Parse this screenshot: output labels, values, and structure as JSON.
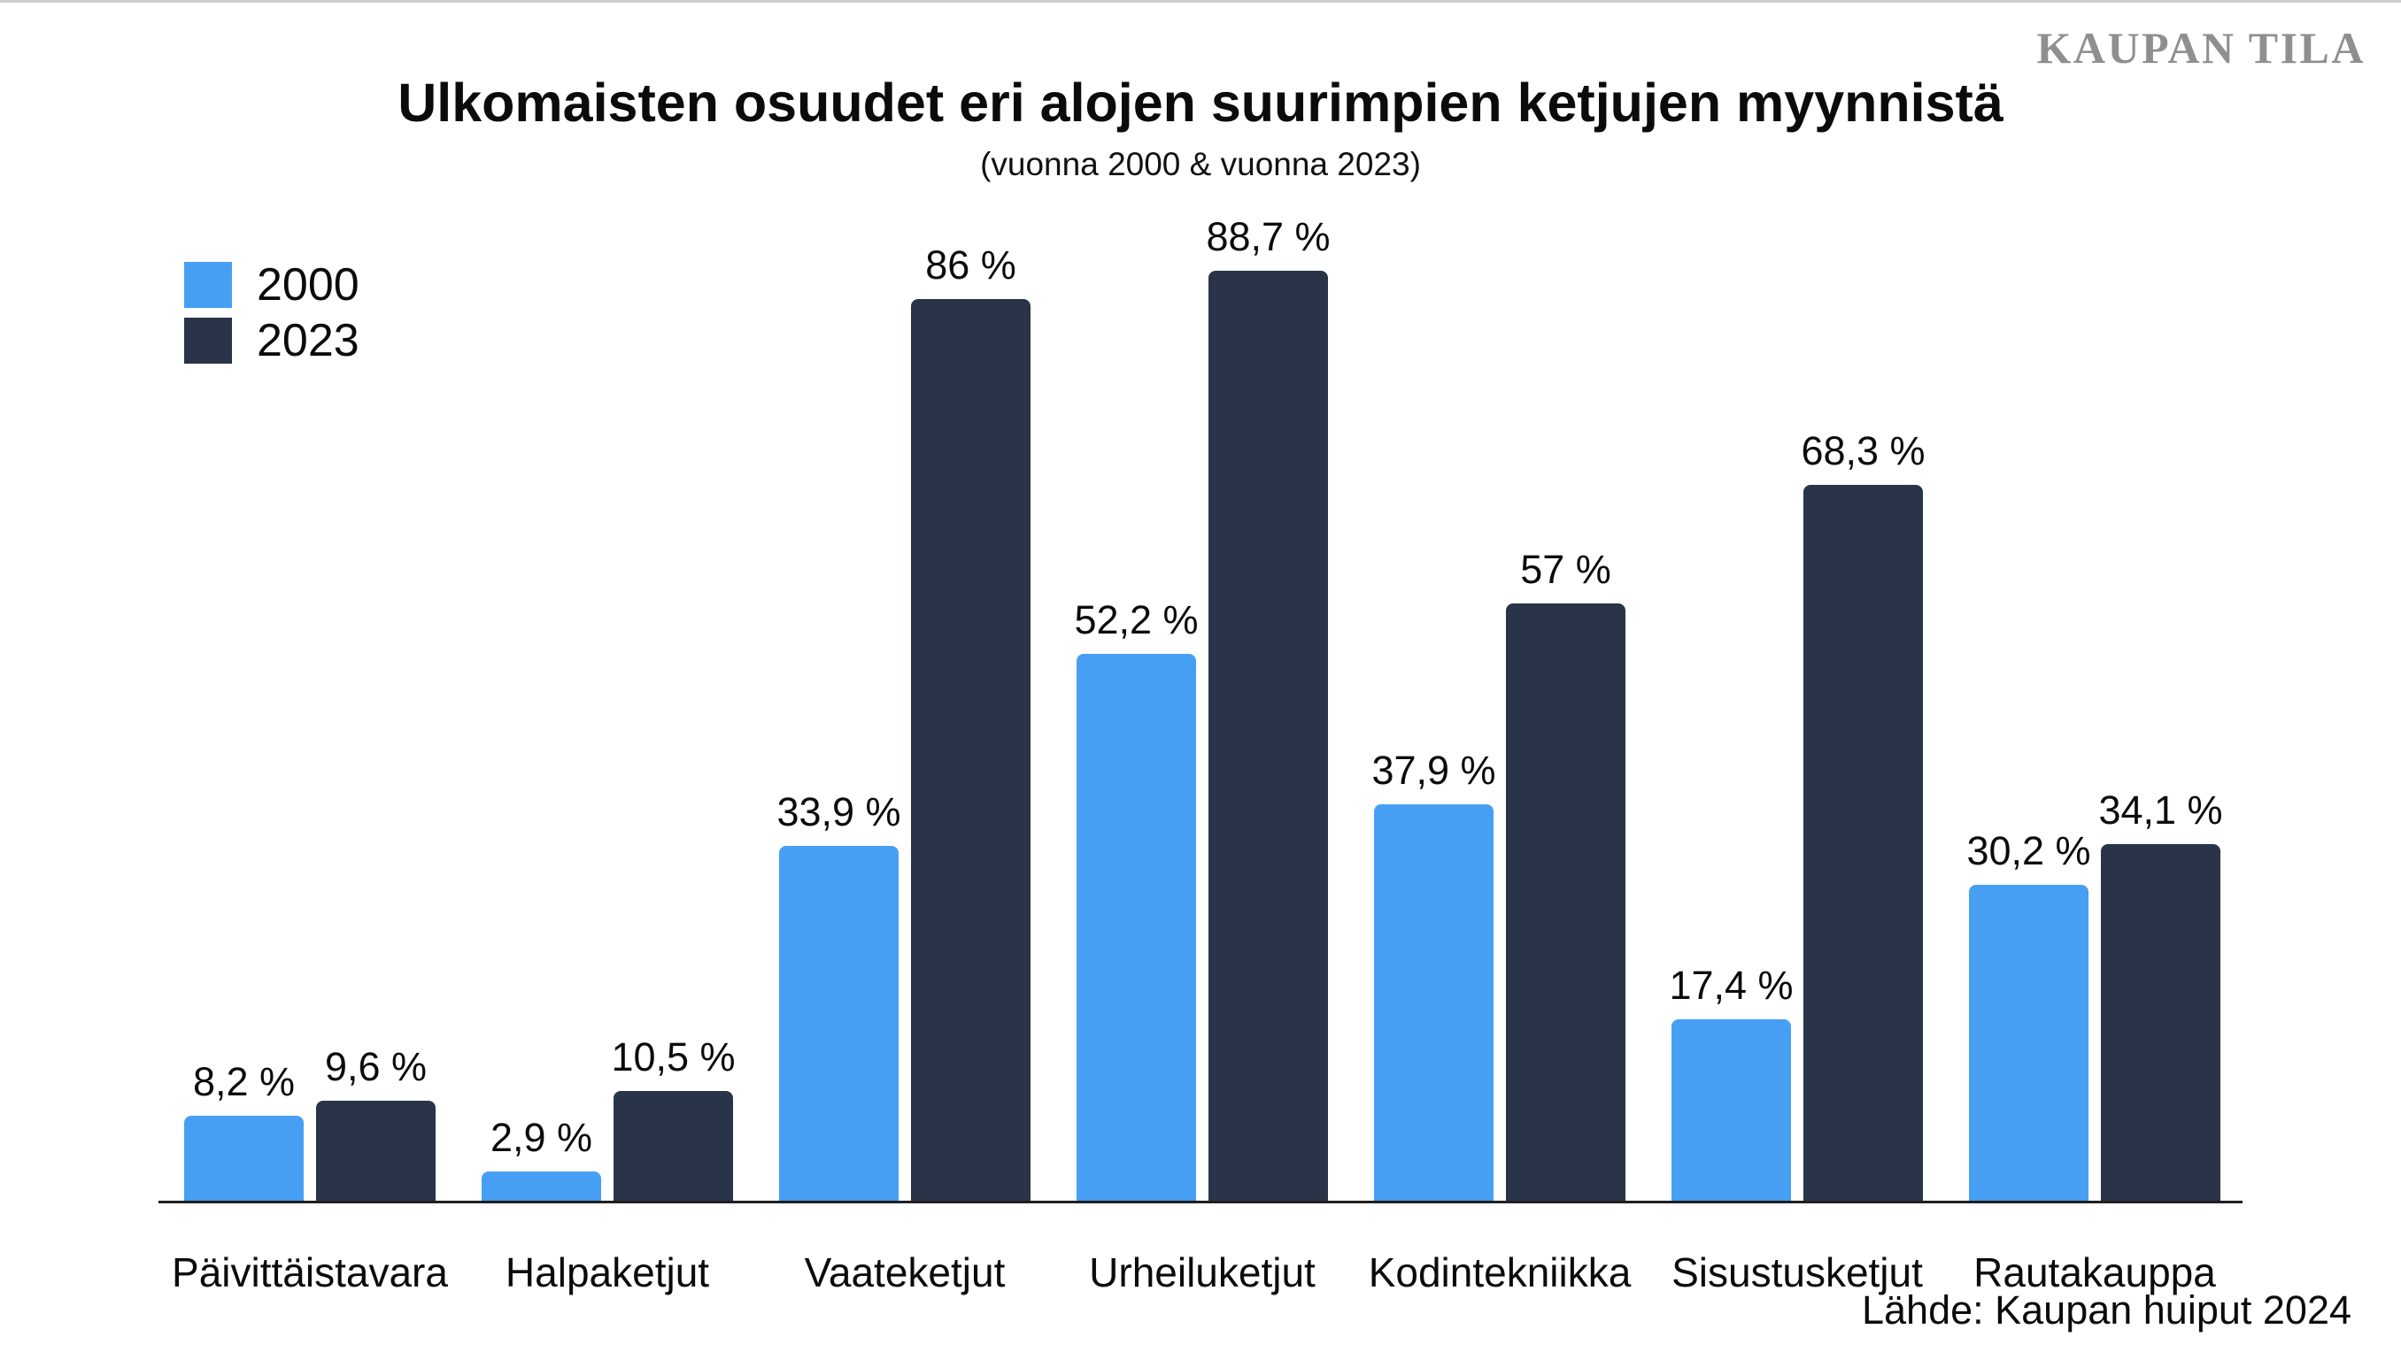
{
  "page": {
    "logo": "KAUPAN TILA",
    "title": "Ulkomaisten osuudet eri alojen suurimpien ketjujen myynnistä",
    "subtitle": "(vuonna 2000 & vuonna 2023)",
    "source": "Lähde: Kaupan huiput 2024"
  },
  "legend": {
    "items": [
      {
        "label": "2000",
        "color": "#469FF3"
      },
      {
        "label": "2023",
        "color": "#2A3448"
      }
    ]
  },
  "chart_data": {
    "type": "bar",
    "title": "Ulkomaisten osuudet eri alojen suurimpien ketjujen myynnistä",
    "subtitle": "(vuonna 2000 & vuonna 2023)",
    "categories": [
      "Päivittäistavara",
      "Halpaketjut",
      "Vaateketjut",
      "Urheiluketjut",
      "Kodintekniikka",
      "Sisustusketjut",
      "Rautakauppa"
    ],
    "series": [
      {
        "name": "2000",
        "color": "#469FF3",
        "values": [
          8.2,
          2.9,
          33.9,
          52.2,
          37.9,
          17.4,
          30.2
        ],
        "labels": [
          "8,2 %",
          "2,9 %",
          "33,9 %",
          "52,2 %",
          "37,9 %",
          "17,4 %",
          "30,2 %"
        ]
      },
      {
        "name": "2023",
        "color": "#2A3448",
        "values": [
          9.6,
          10.5,
          86,
          88.7,
          57,
          68.3,
          34.1
        ],
        "labels": [
          "9,6 %",
          "10,5 %",
          "86 %",
          "88,7 %",
          "57 %",
          "68,3 %",
          "34,1 %"
        ]
      }
    ],
    "ylim": [
      0,
      100
    ],
    "grid": false,
    "legend_position": "top-left",
    "value_labels": true,
    "xlabel": "",
    "ylabel": "",
    "source": "Lähde: Kaupan huiput 2024"
  }
}
